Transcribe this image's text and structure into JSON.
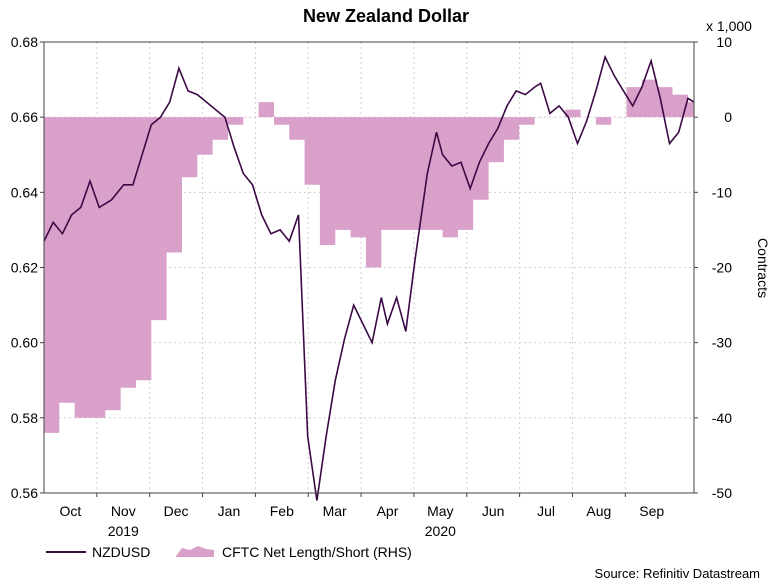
{
  "chart_data": {
    "type": "line",
    "title": "New Zealand Dollar",
    "left_axis": {
      "ylim": [
        0.56,
        0.68
      ],
      "ticks": [
        "0.68",
        "0.66",
        "0.64",
        "0.62",
        "0.60",
        "0.58",
        "0.56"
      ],
      "tick_values": [
        0.68,
        0.66,
        0.64,
        0.62,
        0.6,
        0.58,
        0.56
      ]
    },
    "right_axis": {
      "multiplier_label": "x 1,000",
      "label": "Contracts",
      "ylim": [
        -50,
        10
      ],
      "ticks": [
        "10",
        "0",
        "-10",
        "-20",
        "-30",
        "-40",
        "-50"
      ],
      "tick_values": [
        10,
        0,
        -10,
        -20,
        -30,
        -40,
        -50
      ]
    },
    "x_axis": {
      "months": [
        "Oct",
        "Nov",
        "Dec",
        "Jan",
        "Feb",
        "Mar",
        "Apr",
        "May",
        "Jun",
        "Jul",
        "Aug",
        "Sep"
      ],
      "years": [
        "2019",
        "2020"
      ]
    },
    "series": [
      {
        "name": "NZDUSD",
        "axis": "left",
        "color": "#3b0a45",
        "x": [
          0,
          0.3,
          0.6,
          0.9,
          1.2,
          1.5,
          1.8,
          2.2,
          2.6,
          2.9,
          3.2,
          3.5,
          3.8,
          4.1,
          4.4,
          4.7,
          5.0,
          5.3,
          5.6,
          5.9,
          6.2,
          6.5,
          6.8,
          7.1,
          7.4,
          7.7,
          8.0,
          8.3,
          8.6,
          8.9,
          9.2,
          9.5,
          9.8,
          10.1,
          10.4,
          10.7,
          11.0,
          11.2,
          11.5,
          11.8,
          12.1,
          12.5,
          12.8,
          13.0
        ],
        "values": [
          0.627,
          0.632,
          0.629,
          0.634,
          0.636,
          0.643,
          0.636,
          0.638,
          0.642,
          0.642,
          0.65,
          0.658,
          0.66,
          0.664,
          0.673,
          0.667,
          0.666,
          0.664,
          0.662,
          0.66,
          0.652,
          0.645,
          0.642,
          0.634,
          0.629,
          0.63,
          0.627,
          0.634,
          0.575,
          0.558,
          0.575,
          0.59,
          0.601,
          0.61,
          0.605,
          0.6,
          0.612,
          0.605,
          0.612,
          0.603,
          0.622,
          0.645,
          0.656,
          0.65
        ],
        "values_cont": [
          0.647,
          0.648,
          0.641,
          0.648,
          0.653,
          0.657,
          0.663,
          0.667,
          0.666,
          0.668,
          0.669,
          0.661,
          0.663,
          0.66,
          0.653,
          0.659,
          0.667,
          0.676,
          0.671,
          0.667,
          0.663,
          0.668,
          0.675,
          0.665,
          0.653,
          0.656,
          0.665,
          0.664
        ],
        "x_cont": [
          13.3,
          13.6,
          13.9,
          14.2,
          14.5,
          14.8,
          15.1,
          15.4,
          15.7,
          16.0,
          16.2,
          16.5,
          16.8,
          17.1,
          17.4,
          17.7,
          18.0,
          18.3,
          18.6,
          18.9,
          19.2,
          19.5,
          19.8,
          20.1,
          20.4,
          20.7,
          21.0,
          21.2
        ]
      },
      {
        "name": "CFTC Net Length/Short (RHS)",
        "axis": "right",
        "color": "#d9a0c9",
        "type": "area",
        "x": [
          0,
          0.5,
          1.0,
          1.5,
          2.0,
          2.5,
          3.0,
          3.5,
          4.0,
          4.5,
          5.0,
          5.5,
          6.0,
          6.5,
          7.0,
          7.5,
          8.0,
          8.5,
          9.0,
          9.5,
          10.0,
          10.5,
          11.0,
          11.5,
          12.0,
          12.5,
          13.0,
          13.5,
          14.0,
          14.5,
          15.0,
          15.5,
          16.0,
          16.5,
          17.0,
          17.5,
          18.0,
          18.5,
          19.0,
          19.5,
          20.0,
          20.5,
          21.0
        ],
        "values": [
          -42,
          -38,
          -40,
          -40,
          -39,
          -36,
          -35,
          -27,
          -18,
          -8,
          -5,
          -3,
          -1,
          0,
          2,
          -1,
          -3,
          -9,
          -17,
          -15,
          -16,
          -20,
          -15,
          -15,
          -15,
          -15,
          -16,
          -15,
          -11,
          -6,
          -3,
          -1,
          0,
          0,
          1,
          0,
          -1,
          0,
          4,
          5,
          4,
          3,
          2
        ]
      }
    ],
    "source": "Source: Refinitiv Datastream"
  }
}
